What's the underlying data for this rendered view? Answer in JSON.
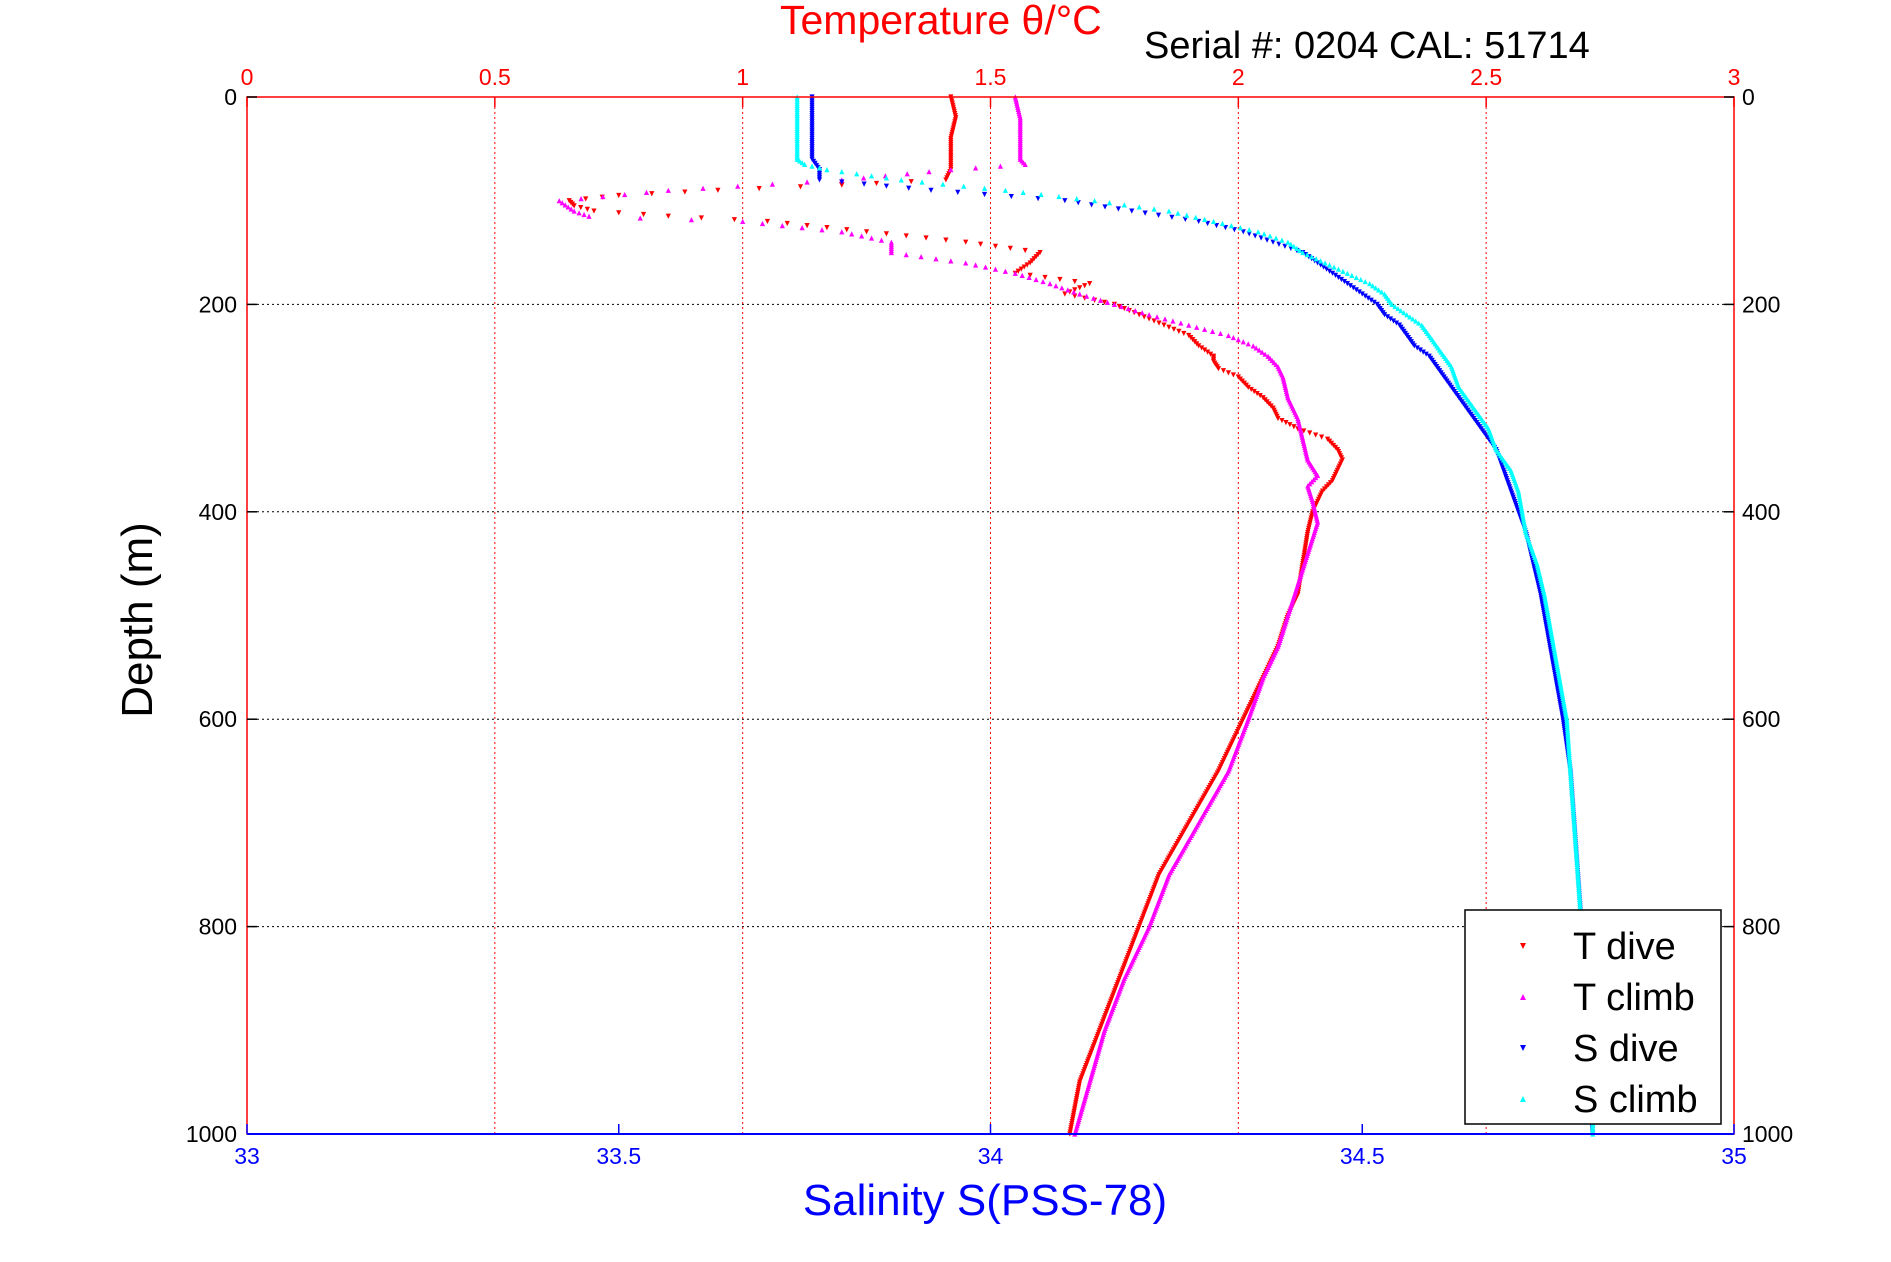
{
  "chart_data": {
    "type": "scatter",
    "title": "Temperature θ/°C",
    "subtitle": "Serial #: 0204  CAL: 51714",
    "ylabel": "Depth (m)",
    "xlabel": "Salinity S(PSS-78)",
    "x_top_label": "Temperature θ/°C",
    "x_top_ticks": [
      "0",
      "0.5",
      "1",
      "1.5",
      "2",
      "2.5",
      "3"
    ],
    "x_top_lim": [
      0,
      3
    ],
    "x_bottom_ticks": [
      "33",
      "33.5",
      "34",
      "34.5",
      "35"
    ],
    "x_bottom_lim": [
      33,
      35
    ],
    "y_ticks": [
      "0",
      "200",
      "400",
      "600",
      "800",
      "1000"
    ],
    "ylim": [
      0,
      1000
    ],
    "y_reversed": true,
    "grid": true,
    "legend_position": "bottom-right",
    "series": [
      {
        "name": "T dive",
        "axis": "temperature",
        "color": "#ff0000",
        "marker": "triangle-down",
        "depth": [
          0,
          20,
          40,
          60,
          70,
          80,
          85,
          90,
          95,
          100,
          105,
          110,
          115,
          120,
          130,
          140,
          150,
          160,
          170,
          180,
          190,
          200,
          210,
          220,
          230,
          240,
          250,
          255,
          262,
          270,
          280,
          290,
          300,
          310,
          320,
          330,
          340,
          350,
          360,
          370,
          380,
          400,
          420,
          450,
          480,
          500,
          530,
          560,
          600,
          650,
          700,
          750,
          800,
          850,
          900,
          950,
          1000
        ],
        "values": [
          1.42,
          1.43,
          1.42,
          1.42,
          1.42,
          1.41,
          1.2,
          0.95,
          0.75,
          0.65,
          0.66,
          0.7,
          0.85,
          1.05,
          1.25,
          1.45,
          1.6,
          1.58,
          1.55,
          1.7,
          1.65,
          1.75,
          1.8,
          1.85,
          1.9,
          1.92,
          1.95,
          1.95,
          1.96,
          2.0,
          2.02,
          2.05,
          2.07,
          2.08,
          2.12,
          2.18,
          2.2,
          2.21,
          2.2,
          2.19,
          2.17,
          2.15,
          2.14,
          2.13,
          2.12,
          2.1,
          2.08,
          2.05,
          2.01,
          1.96,
          1.9,
          1.84,
          1.8,
          1.76,
          1.72,
          1.68,
          1.66
        ]
      },
      {
        "name": "T climb",
        "axis": "temperature",
        "color": "#ff00ff",
        "marker": "triangle-up",
        "depth": [
          0,
          20,
          40,
          60,
          65,
          70,
          80,
          90,
          100,
          110,
          115,
          120,
          130,
          140,
          150,
          160,
          170,
          180,
          190,
          200,
          210,
          220,
          230,
          240,
          250,
          260,
          270,
          290,
          310,
          330,
          350,
          365,
          375,
          390,
          410,
          440,
          470,
          500,
          530,
          560,
          600,
          650,
          700,
          750,
          800,
          850,
          900,
          950,
          1000
        ],
        "values": [
          1.55,
          1.56,
          1.56,
          1.56,
          1.57,
          1.42,
          1.2,
          0.85,
          0.63,
          0.66,
          0.69,
          1.0,
          1.2,
          1.3,
          1.3,
          1.45,
          1.55,
          1.62,
          1.68,
          1.75,
          1.82,
          1.9,
          1.98,
          2.03,
          2.06,
          2.08,
          2.09,
          2.1,
          2.12,
          2.13,
          2.14,
          2.16,
          2.14,
          2.15,
          2.16,
          2.14,
          2.12,
          2.1,
          2.08,
          2.05,
          2.02,
          1.98,
          1.92,
          1.86,
          1.82,
          1.77,
          1.73,
          1.7,
          1.67
        ]
      },
      {
        "name": "S dive",
        "axis": "salinity",
        "color": "#0000ff",
        "marker": "triangle-down",
        "depth": [
          0,
          20,
          40,
          60,
          70,
          80,
          90,
          100,
          110,
          120,
          130,
          140,
          150,
          160,
          170,
          180,
          190,
          200,
          210,
          220,
          230,
          240,
          250,
          260,
          270,
          280,
          290,
          300,
          320,
          340,
          360,
          380,
          400,
          420,
          450,
          480,
          500,
          520,
          540,
          560,
          580,
          600,
          650,
          700,
          750,
          800,
          850,
          900,
          950,
          1000
        ],
        "values": [
          33.76,
          33.76,
          33.76,
          33.76,
          33.77,
          33.77,
          33.92,
          34.1,
          34.19,
          34.28,
          34.34,
          34.38,
          34.42,
          34.44,
          34.46,
          34.48,
          34.5,
          34.52,
          34.53,
          34.55,
          34.56,
          34.57,
          34.59,
          34.6,
          34.61,
          34.62,
          34.63,
          34.64,
          34.66,
          34.68,
          34.69,
          34.7,
          34.71,
          34.72,
          34.73,
          34.74,
          34.745,
          34.75,
          34.755,
          34.76,
          34.765,
          34.77,
          34.78,
          34.785,
          34.79,
          34.795,
          34.8,
          34.8,
          34.805,
          34.81
        ]
      },
      {
        "name": "S climb",
        "axis": "salinity",
        "color": "#00ffff",
        "marker": "triangle-up",
        "depth": [
          0,
          20,
          40,
          60,
          65,
          70,
          80,
          90,
          100,
          110,
          120,
          130,
          140,
          150,
          160,
          170,
          180,
          190,
          200,
          220,
          240,
          260,
          280,
          300,
          320,
          340,
          360,
          380,
          400,
          420,
          450,
          480,
          500,
          520,
          540,
          560,
          580,
          600,
          650,
          700,
          750,
          800,
          850,
          900,
          950,
          1000
        ],
        "values": [
          33.74,
          33.74,
          33.74,
          33.74,
          33.75,
          33.78,
          33.88,
          34.02,
          34.14,
          34.24,
          34.3,
          34.36,
          34.4,
          34.42,
          34.45,
          34.48,
          34.51,
          34.53,
          34.54,
          34.58,
          34.6,
          34.62,
          34.63,
          34.65,
          34.67,
          34.68,
          34.7,
          34.71,
          34.715,
          34.72,
          34.735,
          34.745,
          34.75,
          34.755,
          34.76,
          34.765,
          34.77,
          34.775,
          34.78,
          34.785,
          34.79,
          34.795,
          34.8,
          34.805,
          34.81,
          34.81
        ]
      }
    ],
    "legend": [
      "T dive",
      "T climb",
      "S dive",
      "S climb"
    ]
  },
  "colors": {
    "temperature_axis": "#ff0000",
    "salinity_axis": "#0000ff",
    "grid_vertical": "#ff0000",
    "grid_horizontal": "#000000"
  }
}
